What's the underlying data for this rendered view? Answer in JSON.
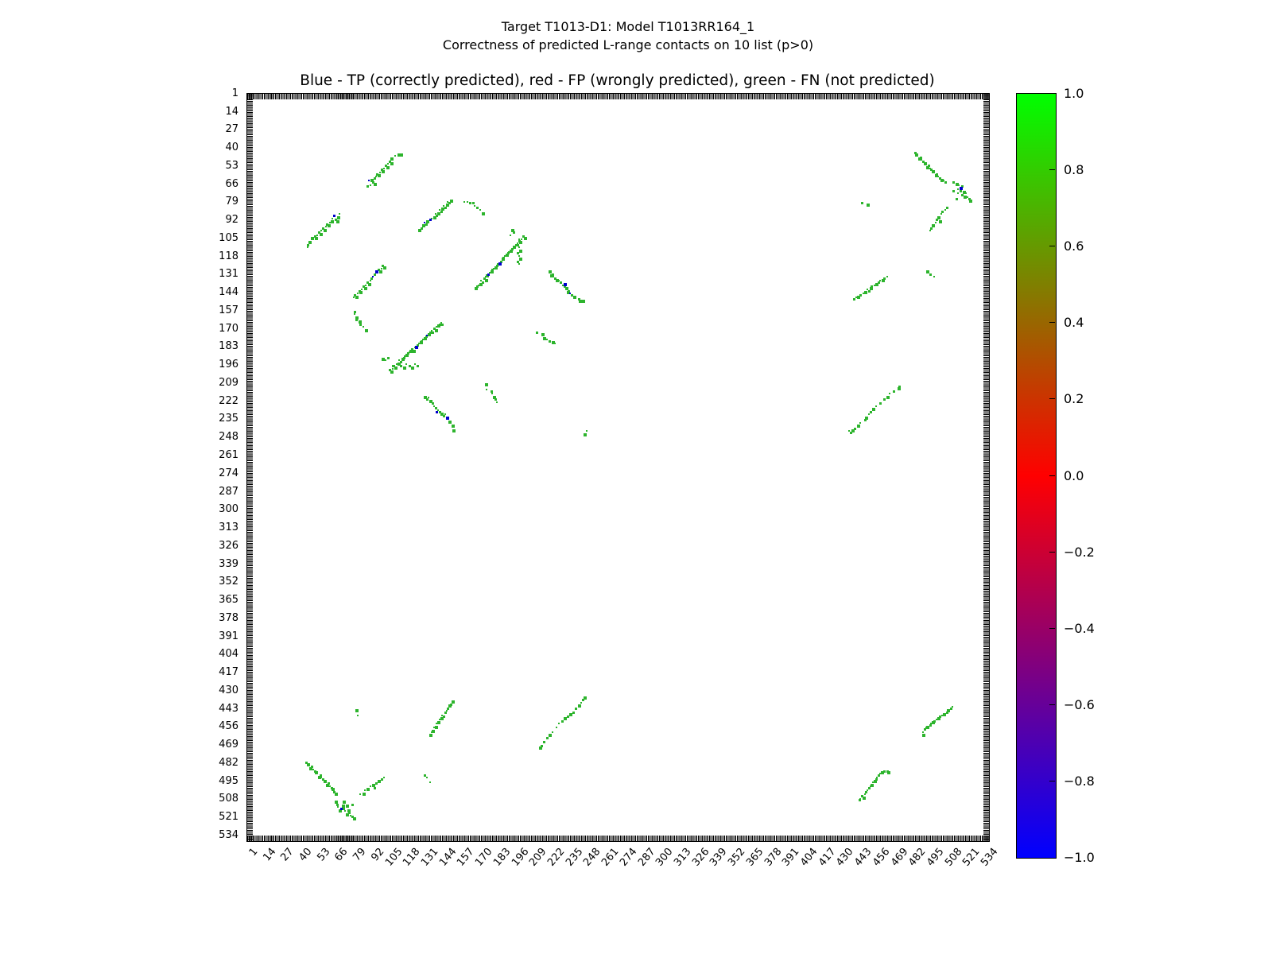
{
  "figure": {
    "title_line1": "Target T1013-D1: Model T1013RR164_1",
    "title_line2": "Correctness of predicted L-range contacts on 10 list (p>0)",
    "axes_title": "Blue - TP (correctly predicted), red - FP (wrongly predicted), green - FN (not predicted)"
  },
  "chart_data": {
    "type": "scatter",
    "title": "Blue - TP (correctly predicted), red - FP (wrongly predicted), green - FN (not predicted)",
    "xlabel": "",
    "ylabel": "",
    "x_range": [
      1,
      534
    ],
    "y_range": [
      1,
      534
    ],
    "y_axis_inverted": true,
    "grid": false,
    "axis_tick_labels": [
      1,
      14,
      27,
      40,
      53,
      66,
      79,
      92,
      105,
      118,
      131,
      144,
      157,
      170,
      183,
      196,
      209,
      222,
      235,
      248,
      261,
      274,
      287,
      300,
      313,
      326,
      339,
      352,
      365,
      378,
      391,
      404,
      417,
      430,
      443,
      456,
      469,
      482,
      495,
      508,
      521,
      534
    ],
    "symmetric_mirror": true,
    "colorbar": {
      "min": -1.0,
      "max": 1.0,
      "tick_labels": [
        "1.0",
        "0.8",
        "0.6",
        "0.4",
        "0.2",
        "0.0",
        "−0.2",
        "−0.4",
        "−0.6",
        "−0.8",
        "−1.0"
      ],
      "top_color": "#00ff00",
      "mid_color": "#ff0000",
      "bottom_color": "#0000ff",
      "position": "right"
    },
    "series": [
      {
        "name": "FN (not predicted)",
        "color": "#2db42d",
        "points": [
          [
            44,
            109
          ],
          [
            44,
            111
          ],
          [
            45,
            107
          ],
          [
            47,
            104
          ],
          [
            48,
            105
          ],
          [
            49,
            103
          ],
          [
            50,
            104
          ],
          [
            51,
            102
          ],
          [
            52,
            100
          ],
          [
            53,
            101
          ],
          [
            54,
            99
          ],
          [
            55,
            97
          ],
          [
            56,
            98
          ],
          [
            57,
            96
          ],
          [
            58,
            94
          ],
          [
            59,
            95
          ],
          [
            60,
            93
          ],
          [
            61,
            92
          ],
          [
            62,
            90
          ],
          [
            64,
            91
          ],
          [
            65,
            92
          ],
          [
            66,
            89
          ],
          [
            67,
            87
          ],
          [
            77,
            147
          ],
          [
            78,
            145
          ],
          [
            79,
            146
          ],
          [
            80,
            144
          ],
          [
            81,
            142
          ],
          [
            82,
            143
          ],
          [
            83,
            141
          ],
          [
            84,
            139
          ],
          [
            85,
            140
          ],
          [
            86,
            138
          ],
          [
            87,
            136
          ],
          [
            88,
            137
          ],
          [
            89,
            135
          ],
          [
            90,
            133
          ],
          [
            92,
            130
          ],
          [
            94,
            129
          ],
          [
            95,
            127
          ],
          [
            96,
            128
          ],
          [
            97,
            126
          ],
          [
            98,
            124
          ],
          [
            99,
            125
          ],
          [
            78,
            157
          ],
          [
            78,
            159
          ],
          [
            79,
            161
          ],
          [
            79,
            163
          ],
          [
            81,
            164
          ],
          [
            82,
            166
          ],
          [
            84,
            168
          ],
          [
            86,
            170
          ],
          [
            87,
            171
          ],
          [
            103,
            199
          ],
          [
            104,
            200
          ],
          [
            105,
            198
          ],
          [
            106,
            196
          ],
          [
            107,
            197
          ],
          [
            108,
            195
          ],
          [
            109,
            194
          ],
          [
            110,
            192
          ],
          [
            111,
            193
          ],
          [
            112,
            191
          ],
          [
            113,
            190
          ],
          [
            114,
            189
          ],
          [
            115,
            188
          ],
          [
            116,
            187
          ],
          [
            117,
            186
          ],
          [
            118,
            185
          ],
          [
            119,
            184
          ],
          [
            120,
            185
          ],
          [
            121,
            183
          ],
          [
            123,
            181
          ],
          [
            124,
            180
          ],
          [
            125,
            179
          ],
          [
            126,
            178
          ],
          [
            127,
            177
          ],
          [
            128,
            176
          ],
          [
            129,
            175
          ],
          [
            131,
            173
          ],
          [
            132,
            172
          ],
          [
            133,
            171
          ],
          [
            134,
            172
          ],
          [
            135,
            169
          ],
          [
            136,
            170
          ],
          [
            137,
            168
          ],
          [
            138,
            167
          ],
          [
            139,
            166
          ],
          [
            140,
            165
          ],
          [
            141,
            166
          ],
          [
            98,
            191
          ],
          [
            100,
            192
          ],
          [
            102,
            190
          ],
          [
            105,
            196
          ],
          [
            107,
            197
          ],
          [
            109,
            195
          ],
          [
            111,
            196
          ],
          [
            113,
            197
          ],
          [
            115,
            195
          ],
          [
            117,
            196
          ],
          [
            119,
            197
          ],
          [
            121,
            195
          ],
          [
            123,
            196
          ],
          [
            128,
            218
          ],
          [
            129,
            219
          ],
          [
            130,
            220
          ],
          [
            131,
            219
          ],
          [
            132,
            221
          ],
          [
            133,
            222
          ],
          [
            134,
            223
          ],
          [
            135,
            225
          ],
          [
            136,
            226
          ],
          [
            138,
            228
          ],
          [
            139,
            229
          ],
          [
            140,
            230
          ],
          [
            141,
            231
          ],
          [
            142,
            232
          ],
          [
            143,
            231
          ],
          [
            145,
            234
          ],
          [
            146,
            236
          ],
          [
            147,
            237
          ],
          [
            148,
            239
          ],
          [
            149,
            240
          ],
          [
            149,
            242
          ],
          [
            172,
            209
          ],
          [
            173,
            213
          ],
          [
            176,
            214
          ],
          [
            177,
            216
          ],
          [
            178,
            218
          ],
          [
            179,
            220
          ],
          [
            180,
            222
          ],
          [
            243,
            245
          ],
          [
            211,
            470
          ],
          [
            212,
            469
          ],
          [
            214,
            466
          ],
          [
            216,
            463
          ],
          [
            218,
            461
          ],
          [
            220,
            459
          ],
          [
            223,
            456
          ],
          [
            225,
            453
          ],
          [
            227,
            451
          ],
          [
            229,
            449
          ],
          [
            231,
            448
          ],
          [
            233,
            446
          ],
          [
            235,
            445
          ],
          [
            237,
            442
          ],
          [
            239,
            440
          ],
          [
            241,
            438
          ],
          [
            242,
            436
          ],
          [
            243,
            434
          ],
          [
            244,
            435
          ],
          [
            43,
            481
          ],
          [
            44,
            482
          ],
          [
            45,
            483
          ],
          [
            46,
            485
          ],
          [
            47,
            484
          ],
          [
            48,
            486
          ],
          [
            49,
            487
          ],
          [
            50,
            488
          ],
          [
            51,
            489
          ],
          [
            52,
            491
          ],
          [
            53,
            490
          ],
          [
            54,
            492
          ],
          [
            55,
            493
          ],
          [
            56,
            494
          ],
          [
            57,
            495
          ],
          [
            58,
            497
          ],
          [
            59,
            496
          ],
          [
            60,
            498
          ],
          [
            61,
            499
          ],
          [
            62,
            500
          ],
          [
            63,
            502
          ],
          [
            64,
            503
          ],
          [
            64,
            509
          ],
          [
            65,
            511
          ],
          [
            66,
            513
          ],
          [
            67,
            515
          ],
          [
            69,
            512
          ],
          [
            70,
            514
          ],
          [
            70,
            509
          ],
          [
            71,
            516
          ],
          [
            72,
            518
          ],
          [
            72,
            512
          ],
          [
            73,
            515
          ],
          [
            74,
            517
          ],
          [
            75,
            519
          ],
          [
            76,
            520
          ],
          [
            77,
            521
          ],
          [
            76,
            511
          ],
          [
            79,
            443
          ],
          [
            80,
            447
          ],
          [
            82,
            504
          ],
          [
            84,
            503
          ],
          [
            85,
            501
          ],
          [
            87,
            500
          ],
          [
            89,
            498
          ],
          [
            91,
            497
          ],
          [
            92,
            499
          ],
          [
            93,
            496
          ],
          [
            95,
            494
          ],
          [
            96,
            495
          ],
          [
            97,
            493
          ],
          [
            99,
            492
          ],
          [
            128,
            490
          ],
          [
            130,
            492
          ],
          [
            132,
            495
          ],
          [
            132,
            461
          ],
          [
            133,
            459
          ],
          [
            134,
            458
          ],
          [
            135,
            456
          ],
          [
            136,
            455
          ],
          [
            137,
            453
          ],
          [
            138,
            452
          ],
          [
            139,
            450
          ],
          [
            140,
            449
          ],
          [
            141,
            447
          ],
          [
            142,
            448
          ],
          [
            143,
            445
          ],
          [
            144,
            444
          ],
          [
            145,
            442
          ],
          [
            146,
            440
          ],
          [
            147,
            439
          ],
          [
            148,
            437
          ],
          [
            441,
            508
          ],
          [
            442,
            507
          ],
          [
            443,
            505
          ],
          [
            444,
            506
          ],
          [
            445,
            504
          ],
          [
            446,
            502
          ],
          [
            447,
            501
          ],
          [
            448,
            499
          ],
          [
            449,
            498
          ],
          [
            450,
            497
          ],
          [
            451,
            495
          ],
          [
            452,
            494
          ],
          [
            453,
            493
          ],
          [
            454,
            492
          ],
          [
            455,
            490
          ],
          [
            456,
            489
          ],
          [
            457,
            488
          ],
          [
            459,
            487
          ],
          [
            461,
            487
          ],
          [
            462,
            488
          ]
        ]
      },
      {
        "name": "TP (correctly predicted)",
        "color": "#0000cd",
        "points": [
          [
            63,
            88
          ],
          [
            91,
            132
          ],
          [
            93,
            128
          ],
          [
            122,
            182
          ],
          [
            130,
            174
          ],
          [
            137,
            229
          ],
          [
            144,
            233
          ],
          [
            68,
            514
          ]
        ]
      },
      {
        "name": "FP (wrongly predicted)",
        "color": "#ff0000",
        "points": []
      }
    ]
  }
}
